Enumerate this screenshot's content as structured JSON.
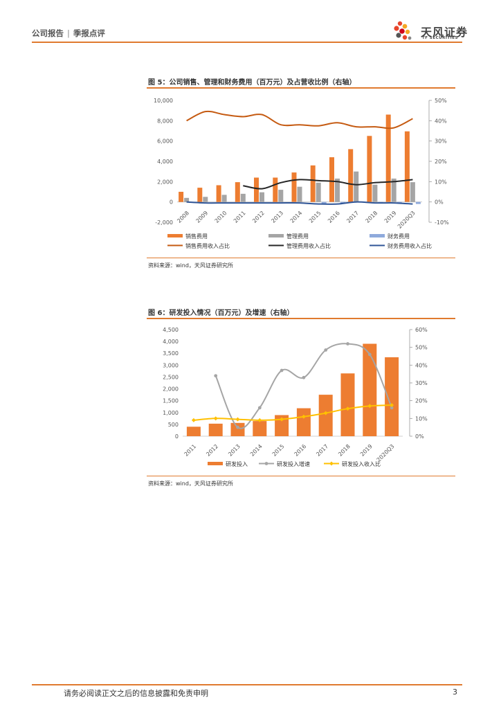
{
  "header": {
    "doc_type": "公司报告",
    "report_type": "季报点评",
    "logo_cn": "天风证券",
    "logo_en": "TF SECURITIES"
  },
  "colors": {
    "orange": "#ED7D31",
    "gray": "#A5A5A5",
    "blue": "#8FAADC",
    "dark_orange_line": "#C55A11",
    "black_line": "#262626",
    "navy_line": "#2F5597",
    "yellow": "#FFC000",
    "accent": "#E07A2E"
  },
  "figure5": {
    "title": "图 5：公司销售、管理和财务费用（百万元）及占营收比例（右轴）",
    "source": "资料来源：wind，天风证券研究所"
  },
  "figure6": {
    "title": "图 6：研发投入情况（百万元）及增速（右轴）",
    "source": "资料来源：wind，天风证券研究所"
  },
  "footer": {
    "disclaimer": "请务必阅读正文之后的信息披露和免责申明",
    "page": "3"
  },
  "chart_data": [
    {
      "type": "bar",
      "title": "图 5：公司销售、管理和财务费用（百万元）及占营收比例（右轴）",
      "categories": [
        "2008",
        "2009",
        "2010",
        "2011",
        "2012",
        "2013",
        "2014",
        "2015",
        "2016",
        "2017",
        "2018",
        "2019",
        "2020Q3"
      ],
      "ylim": [
        -2000,
        10000
      ],
      "yticks": [
        "10,000",
        "8,000",
        "6,000",
        "4,000",
        "2,000",
        "0",
        "-2,000"
      ],
      "y2lim": [
        -10,
        50
      ],
      "y2ticks": [
        "50%",
        "40%",
        "30%",
        "20%",
        "10%",
        "0%",
        "-10%"
      ],
      "series": [
        {
          "name": "销售费用",
          "kind": "bar",
          "axis": "left",
          "values": [
            1000,
            1400,
            1650,
            1950,
            2400,
            2400,
            2900,
            3600,
            4400,
            5200,
            6500,
            8600,
            6950
          ]
        },
        {
          "name": "管理费用",
          "kind": "bar",
          "axis": "left",
          "values": [
            400,
            500,
            700,
            800,
            950,
            1200,
            1500,
            1900,
            2300,
            3000,
            1700,
            2300,
            1950
          ]
        },
        {
          "name": "财务费用",
          "kind": "bar",
          "axis": "left",
          "values": [
            0,
            0,
            0,
            0,
            0,
            0,
            0,
            -150,
            -150,
            -50,
            -50,
            -100,
            -200
          ]
        },
        {
          "name": "销售费用收入占比",
          "kind": "line",
          "axis": "right",
          "values": [
            40,
            44.5,
            43,
            42,
            43,
            38,
            38,
            37.5,
            39,
            37,
            37,
            36.5,
            41
          ]
        },
        {
          "name": "管理费用收入占比",
          "kind": "line",
          "axis": "right",
          "values": [
            null,
            null,
            null,
            8,
            6.5,
            9.5,
            11,
            10.5,
            10,
            8.5,
            9.5,
            10,
            11
          ]
        },
        {
          "name": "财务费用收入占比",
          "kind": "line",
          "axis": "right",
          "values": [
            0,
            -0.5,
            -0.5,
            -0.5,
            -0.5,
            -0.5,
            -0.5,
            -1,
            -1,
            0,
            -0.5,
            -0.5,
            -1
          ]
        }
      ],
      "legend": [
        "销售费用",
        "管理费用",
        "财务费用",
        "销售费用收入占比",
        "管理费用收入占比",
        "财务费用收入占比"
      ]
    },
    {
      "type": "bar",
      "title": "图 6：研发投入情况（百万元）及增速（右轴）",
      "categories": [
        "2011",
        "2012",
        "2013",
        "2014",
        "2015",
        "2016",
        "2017",
        "2018",
        "2019",
        "2020Q3"
      ],
      "ylim": [
        0,
        4500
      ],
      "yticks": [
        "4,500",
        "4,000",
        "3,500",
        "3,000",
        "2,500",
        "2,000",
        "1,500",
        "1,000",
        "500",
        "0"
      ],
      "y2lim": [
        0,
        60
      ],
      "y2ticks": [
        "60%",
        "50%",
        "40%",
        "30%",
        "20%",
        "10%",
        "0%"
      ],
      "series": [
        {
          "name": "研发投入",
          "kind": "bar",
          "axis": "left",
          "values": [
            400,
            530,
            560,
            640,
            890,
            1180,
            1750,
            2650,
            3900,
            3330
          ]
        },
        {
          "name": "研发投入增速",
          "kind": "line",
          "axis": "right",
          "values": [
            null,
            34,
            5,
            16,
            37,
            33,
            48.5,
            52,
            46,
            16
          ]
        },
        {
          "name": "研发投入收入比",
          "kind": "line",
          "axis": "right",
          "values": [
            9,
            10,
            9.5,
            9,
            9.5,
            11,
            13,
            15.5,
            17,
            17.5
          ]
        }
      ],
      "legend": [
        "研发投入",
        "研发投入增速",
        "研发投入收入比"
      ]
    }
  ]
}
